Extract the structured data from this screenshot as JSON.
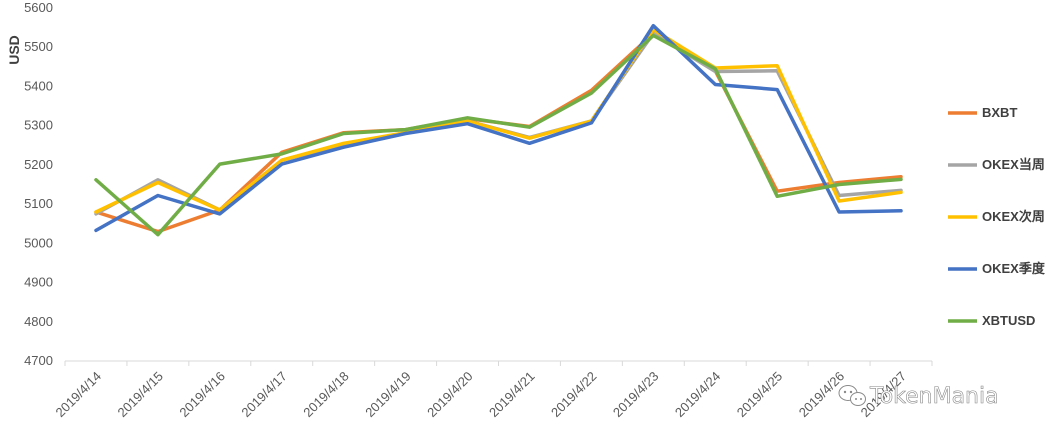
{
  "chart_data": {
    "type": "line",
    "title": "",
    "xlabel": "",
    "ylabel": "USD",
    "ylim": [
      4700,
      5600
    ],
    "yticks": [
      4700,
      4800,
      4900,
      5000,
      5100,
      5200,
      5300,
      5400,
      5500,
      5600
    ],
    "categories": [
      "2019/4/14",
      "2019/4/15",
      "2019/4/16",
      "2019/4/17",
      "2019/4/18",
      "2019/4/19",
      "2019/4/20",
      "2019/4/21",
      "2019/4/22",
      "2019/4/23",
      "2019/4/24",
      "2019/4/25",
      "2019/4/26",
      "2019/4/27"
    ],
    "grid": false,
    "legend_position": "right",
    "series": [
      {
        "name": "BXBT",
        "color": "#ED7D31",
        "values": [
          5080,
          5030,
          5085,
          5232,
          5282,
          5290,
          5318,
          5298,
          5390,
          5535,
          5440,
          5133,
          5155,
          5170
        ]
      },
      {
        "name": "OKEX当周",
        "color": "#A5A5A5",
        "values": [
          5075,
          5162,
          5085,
          5212,
          5252,
          5282,
          5312,
          5270,
          5312,
          5535,
          5438,
          5440,
          5122,
          5135
        ]
      },
      {
        "name": "OKEX次周",
        "color": "#FFC000",
        "values": [
          5080,
          5155,
          5085,
          5212,
          5255,
          5282,
          5312,
          5268,
          5312,
          5545,
          5447,
          5453,
          5108,
          5130
        ]
      },
      {
        "name": "OKEX季度",
        "color": "#4472C4",
        "values": [
          5033,
          5122,
          5075,
          5202,
          5245,
          5280,
          5305,
          5255,
          5307,
          5555,
          5405,
          5392,
          5080,
          5083
        ]
      },
      {
        "name": "XBTUSD",
        "color": "#70AD47",
        "values": [
          5162,
          5022,
          5202,
          5228,
          5280,
          5290,
          5320,
          5296,
          5383,
          5530,
          5445,
          5120,
          5150,
          5163
        ]
      }
    ]
  },
  "watermark": {
    "text": "TokenMania",
    "icon": "wechat-icon"
  }
}
